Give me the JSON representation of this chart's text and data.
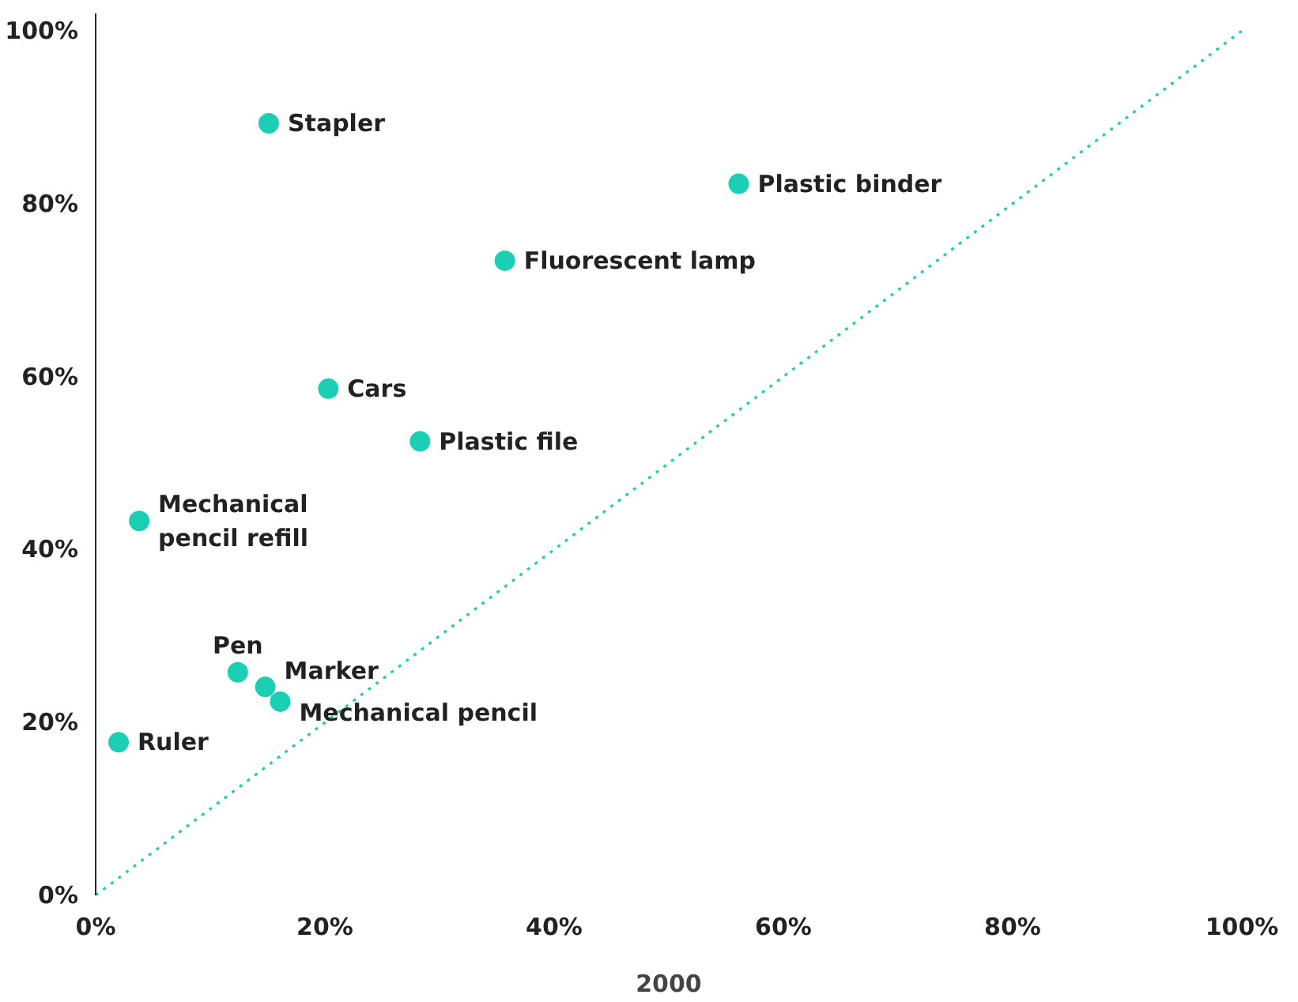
{
  "chart_data": {
    "type": "scatter",
    "xlabel": "2000",
    "xlim": [
      0,
      100
    ],
    "ylim": [
      0,
      102
    ],
    "xticks": [
      {
        "value": 0,
        "label": "0%"
      },
      {
        "value": 20,
        "label": "20%"
      },
      {
        "value": 40,
        "label": "40%"
      },
      {
        "value": 60,
        "label": "60%"
      },
      {
        "value": 80,
        "label": "80%"
      },
      {
        "value": 100,
        "label": "100%"
      }
    ],
    "yticks": [
      {
        "value": 0,
        "label": "0%"
      },
      {
        "value": 20,
        "label": "20%"
      },
      {
        "value": 40,
        "label": "40%"
      },
      {
        "value": 60,
        "label": "60%"
      },
      {
        "value": 80,
        "label": "80%"
      },
      {
        "value": 100,
        "label": "100%"
      }
    ],
    "grid": false,
    "marker": "circle",
    "series": [
      {
        "color": "#1ccfb4",
        "x": [
          15.1,
          56.1,
          35.7,
          20.3,
          28.3,
          3.8,
          12.4,
          14.8,
          16.1,
          2.0
        ],
        "values": [
          89.3,
          82.3,
          73.4,
          58.6,
          52.5,
          43.3,
          25.8,
          24.1,
          22.4,
          17.7
        ]
      },
      {
        "type": "line",
        "color": "#1ccfb4",
        "line_style": "dotted",
        "marker": "none",
        "x": [
          0,
          100
        ],
        "values": [
          0,
          100
        ]
      }
    ],
    "annotations": [
      {
        "text": "Stapler",
        "x": 15.1,
        "y": 89.3
      },
      {
        "text": "Plastic binder",
        "x": 56.1,
        "y": 82.3
      },
      {
        "text": "Fluorescent lamp",
        "x": 35.7,
        "y": 73.4
      },
      {
        "text": "Cars",
        "x": 20.3,
        "y": 58.6
      },
      {
        "text": "Plastic file",
        "x": 28.3,
        "y": 52.5
      },
      {
        "text": "Mechanical\npencil refill",
        "x": 3.8,
        "y": 43.3
      },
      {
        "text": "Pen",
        "x": 12.4,
        "y": 25.8
      },
      {
        "text": "Marker",
        "x": 14.8,
        "y": 24.1
      },
      {
        "text": "Mechanical pencil",
        "x": 16.1,
        "y": 22.4
      },
      {
        "text": "Ruler",
        "x": 2.0,
        "y": 17.7
      }
    ]
  }
}
